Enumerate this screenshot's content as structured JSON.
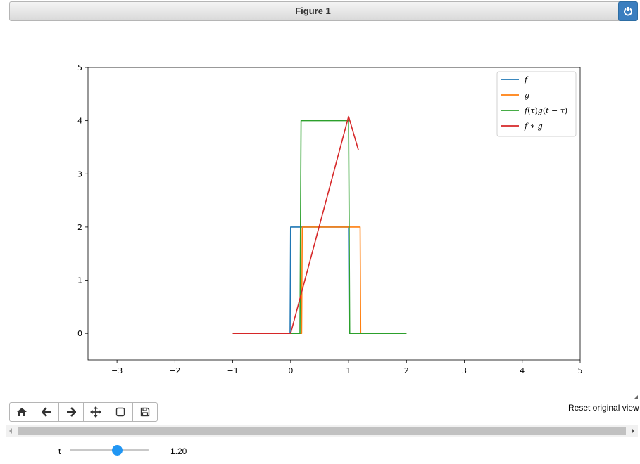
{
  "window": {
    "title": "Figure 1"
  },
  "toolbar": {
    "buttons": [
      {
        "name": "home-icon",
        "glyph": "home"
      },
      {
        "name": "back-arrow-icon",
        "glyph": "left"
      },
      {
        "name": "forward-arrow-icon",
        "glyph": "right"
      },
      {
        "name": "pan-move-icon",
        "glyph": "move"
      },
      {
        "name": "zoom-rect-icon",
        "glyph": "rect"
      },
      {
        "name": "save-floppy-icon",
        "glyph": "save"
      }
    ],
    "message": "Reset original view"
  },
  "slider": {
    "label": "t",
    "value": 1.2,
    "min": 0,
    "max": 2,
    "value_text": "1.20"
  },
  "colors": {
    "accent": "#3a7ebf",
    "slider": "#2196f3"
  },
  "chart_data": {
    "type": "line",
    "title": "",
    "xlabel": "",
    "ylabel": "",
    "xlim": [
      -3.5,
      5
    ],
    "ylim": [
      -0.5,
      5
    ],
    "xticks": [
      -3,
      -2,
      -1,
      0,
      1,
      2,
      3,
      4,
      5
    ],
    "yticks": [
      0,
      1,
      2,
      3,
      4,
      5
    ],
    "xtick_labels": [
      "−3",
      "−2",
      "−1",
      "0",
      "1",
      "2",
      "3",
      "4",
      "5"
    ],
    "ytick_labels": [
      "0",
      "1",
      "2",
      "3",
      "4",
      "5"
    ],
    "grid": false,
    "legend_position": "top-right",
    "series": [
      {
        "name": "f",
        "label_html": "<tspan font-style='italic'>f</tspan>",
        "color": "#1f77b4",
        "x": [
          -1,
          -0.01,
          0,
          1,
          1.01,
          2
        ],
        "y": [
          0,
          0,
          2,
          2,
          0,
          0
        ]
      },
      {
        "name": "g",
        "label_html": "<tspan font-style='italic'>g</tspan>",
        "color": "#ff7f0e",
        "x": [
          -1,
          0.19,
          0.2,
          1.2,
          1.21,
          2
        ],
        "y": [
          0,
          0,
          2,
          2,
          0,
          0
        ]
      },
      {
        "name": "f(τ)g(t − τ)",
        "label_html": "<tspan font-style='italic'>f</tspan>(<tspan font-style='italic'>τ</tspan>)<tspan font-style='italic'>g</tspan>(<tspan font-style='italic'>t</tspan> − <tspan font-style='italic'>τ</tspan>)",
        "color": "#2ca02c",
        "x": [
          -1,
          0.16,
          0.18,
          1,
          1.02,
          2
        ],
        "y": [
          0,
          0,
          4,
          4,
          0,
          0
        ]
      },
      {
        "name": "f ∗ g",
        "label_html": "<tspan font-style='italic'>f</tspan> ∗ <tspan font-style='italic'>g</tspan>",
        "color": "#d62728",
        "x": [
          -1,
          0,
          1,
          1.17
        ],
        "y": [
          0,
          0,
          4.08,
          3.45
        ]
      }
    ]
  }
}
